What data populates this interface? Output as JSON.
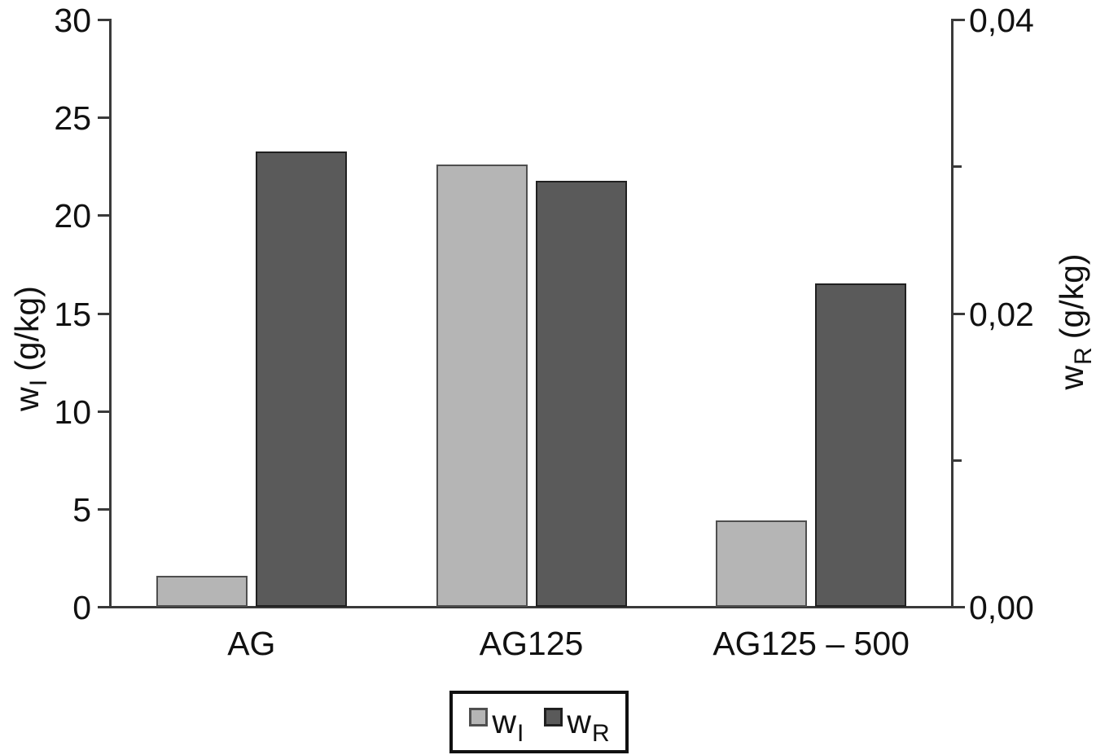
{
  "chart_data": {
    "type": "bar",
    "title": "",
    "categories": [
      "AG",
      "AG125",
      "AG125 – 500"
    ],
    "series": [
      {
        "name": "w_I",
        "symbol": "w",
        "sub": "I",
        "axis": "left",
        "color": "#b5b5b5",
        "border_color": "#4f4f4f",
        "values": [
          1.6,
          22.6,
          4.4
        ]
      },
      {
        "name": "w_R",
        "symbol": "w",
        "sub": "R",
        "axis": "right",
        "color": "#5a5a5a",
        "border_color": "#202020",
        "values": [
          0.031,
          0.029,
          0.022
        ]
      }
    ],
    "left_axis": {
      "symbol": "w",
      "sub": "I",
      "unit": "(g/kg)",
      "min": 0,
      "max": 30,
      "ticks": [
        {
          "v": 0,
          "label": "0"
        },
        {
          "v": 5,
          "label": "5"
        },
        {
          "v": 10,
          "label": "10"
        },
        {
          "v": 15,
          "label": "15"
        },
        {
          "v": 20,
          "label": "20"
        },
        {
          "v": 25,
          "label": "25"
        },
        {
          "v": 30,
          "label": "30"
        }
      ]
    },
    "right_axis": {
      "symbol": "w",
      "sub": "R",
      "unit": "(g/kg)",
      "min": 0,
      "max": 0.04,
      "decimal_separator": ",",
      "ticks": [
        {
          "v": 0,
          "label": "0,00"
        },
        {
          "v": 0.02,
          "label": "0,02"
        },
        {
          "v": 0.04,
          "label": "0,04"
        }
      ],
      "minor_ticks": [
        0.01,
        0.03
      ]
    },
    "legend": {
      "position": "bottom",
      "items": [
        {
          "symbol": "w",
          "sub": "I",
          "color": "#b5b5b5"
        },
        {
          "symbol": "w",
          "sub": "R",
          "color": "#5a5a5a"
        }
      ]
    },
    "grid": false,
    "axis_color": "#3a3a3a",
    "text_color": "#111111",
    "background": "#ffffff"
  }
}
